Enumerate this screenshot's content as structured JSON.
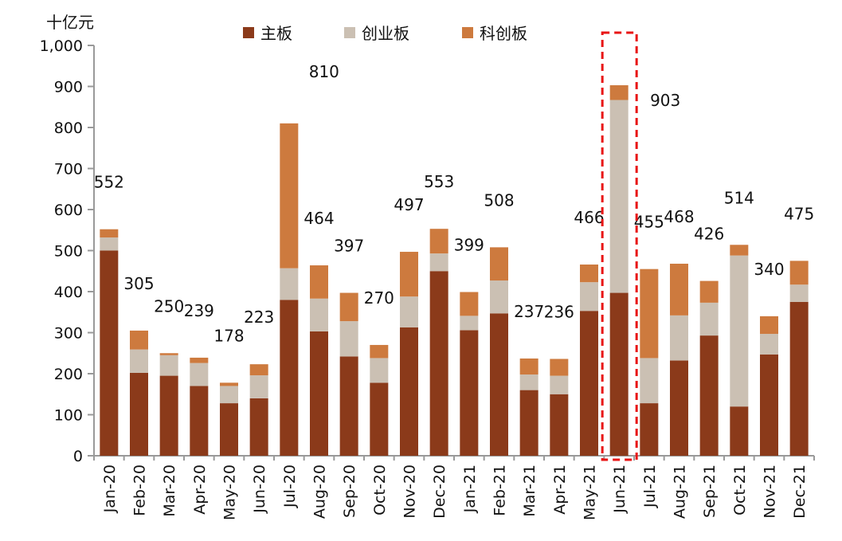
{
  "chart_data": {
    "type": "bar",
    "stacked": true,
    "unit_label": "十亿元",
    "categories": [
      "Jan-20",
      "Feb-20",
      "Mar-20",
      "Apr-20",
      "May-20",
      "Jun-20",
      "Jul-20",
      "Aug-20",
      "Sep-20",
      "Oct-20",
      "Nov-20",
      "Dec-20",
      "Jan-21",
      "Feb-21",
      "Mar-21",
      "Apr-21",
      "May-21",
      "Jun-21",
      "Jul-21",
      "Aug-21",
      "Sep-21",
      "Oct-21",
      "Nov-21",
      "Dec-21"
    ],
    "series": [
      {
        "name": "主板",
        "color": "#8b3a1a",
        "values": [
          500,
          202,
          195,
          170,
          128,
          140,
          380,
          303,
          242,
          178,
          313,
          450,
          306,
          347,
          160,
          150,
          353,
          397,
          128,
          232,
          293,
          120,
          247,
          375
        ]
      },
      {
        "name": "创业板",
        "color": "#cbc0b3",
        "values": [
          32,
          57,
          50,
          56,
          42,
          56,
          77,
          80,
          86,
          60,
          75,
          43,
          35,
          80,
          38,
          45,
          70,
          470,
          110,
          110,
          80,
          368,
          50,
          42
        ]
      },
      {
        "name": "科创板",
        "color": "#cd7a3e",
        "values": [
          20,
          46,
          5,
          13,
          8,
          27,
          353,
          81,
          69,
          32,
          109,
          60,
          58,
          81,
          39,
          41,
          43,
          36,
          217,
          126,
          53,
          26,
          43,
          58
        ]
      }
    ],
    "totals": [
      552,
      305,
      250,
      239,
      178,
      223,
      810,
      464,
      397,
      270,
      497,
      553,
      399,
      508,
      237,
      236,
      466,
      903,
      455,
      468,
      426,
      514,
      340,
      475
    ],
    "ylim": [
      0,
      1000
    ],
    "yticks": [
      "0",
      "100",
      "200",
      "300",
      "400",
      "500",
      "600",
      "700",
      "800",
      "900",
      "1,000"
    ],
    "legend_position": "top",
    "highlight_category": "Jun-21",
    "highlight_color": "#e81515",
    "grid": false
  }
}
